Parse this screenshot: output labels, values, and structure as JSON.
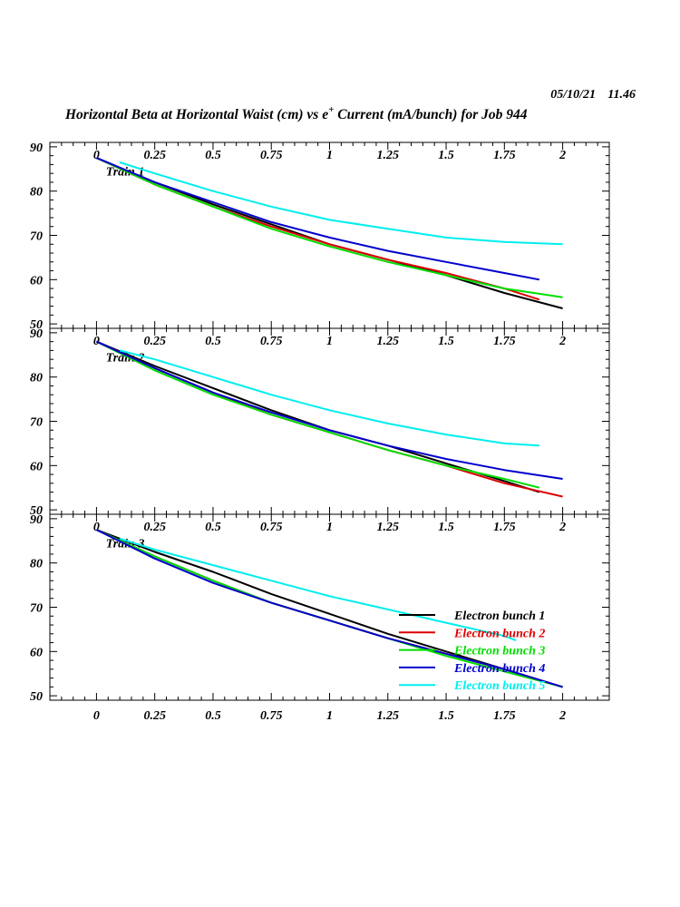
{
  "header": {
    "date": "05/10/21",
    "time": "11.46",
    "title_part1": "Horizontal Beta at Horizontal Waist (cm) vs e",
    "title_sup": "+",
    "title_part2": " Current (mA/bunch) for Job 944"
  },
  "colors": {
    "Electron bunch 1": "#000000",
    "Electron bunch 2": "#dd0000",
    "Electron bunch 3": "#00dd00",
    "Electron bunch 4": "#0000cc",
    "Electron bunch 5": "#00eeee"
  },
  "chart_data": {
    "type": "line",
    "xlim": [
      -0.2,
      2.2
    ],
    "ylim": [
      49,
      91
    ],
    "x_ticks": [
      0,
      0.25,
      0.5,
      0.75,
      1,
      1.25,
      1.5,
      1.75,
      2
    ],
    "x_tick_labels": [
      "0",
      "0.25",
      "0.5",
      "0.75",
      "1",
      "1.25",
      "1.5",
      "1.75",
      "2"
    ],
    "y_ticks": [
      50,
      60,
      70,
      80,
      90
    ],
    "y_tick_labels": [
      "50",
      "60",
      "70",
      "80",
      "90"
    ],
    "legend": {
      "location": "bottom-right of panel 3",
      "entries": [
        "Electron bunch 1",
        "Electron bunch 2",
        "Electron bunch 3",
        "Electron bunch 4",
        "Electron bunch 5"
      ]
    },
    "panels": [
      {
        "label": "Train 1",
        "series": [
          {
            "name": "Electron bunch 1",
            "x": [
              0,
              0.25,
              0.5,
              0.75,
              1,
              1.25,
              1.5,
              1.75,
              2
            ],
            "y": [
              87.5,
              82,
              77,
              72.5,
              68,
              64.5,
              61,
              57,
              53.5
            ]
          },
          {
            "name": "Electron bunch 2",
            "x": [
              0,
              0.25,
              0.5,
              0.75,
              1,
              1.25,
              1.5,
              1.75,
              1.9
            ],
            "y": [
              87.5,
              81.5,
              76.5,
              72,
              68,
              64.5,
              61.5,
              58,
              55.5
            ]
          },
          {
            "name": "Electron bunch 3",
            "x": [
              0,
              0.25,
              0.5,
              0.75,
              1,
              1.25,
              1.5,
              1.75,
              2
            ],
            "y": [
              87.5,
              81.5,
              76.5,
              71.5,
              67.5,
              64,
              61,
              58,
              56
            ]
          },
          {
            "name": "Electron bunch 4",
            "x": [
              0,
              0.25,
              0.5,
              0.75,
              1,
              1.25,
              1.5,
              1.75,
              1.9
            ],
            "y": [
              87.5,
              82,
              77.5,
              73,
              69.5,
              66.5,
              64,
              61.5,
              60
            ]
          },
          {
            "name": "Electron bunch 5",
            "x": [
              0.1,
              0.25,
              0.5,
              0.75,
              1,
              1.25,
              1.5,
              1.75,
              2
            ],
            "y": [
              86.5,
              84,
              80,
              76.5,
              73.5,
              71.5,
              69.5,
              68.5,
              68
            ]
          }
        ]
      },
      {
        "label": "Train 2",
        "series": [
          {
            "name": "Electron bunch 1",
            "x": [
              0,
              0.25,
              0.5,
              0.75,
              1,
              1.25,
              1.5,
              1.75,
              1.9
            ],
            "y": [
              88,
              82.5,
              77.5,
              72.5,
              68,
              64.5,
              60.5,
              56.5,
              54
            ]
          },
          {
            "name": "Electron bunch 2",
            "x": [
              0,
              0.25,
              0.5,
              0.75,
              1,
              1.25,
              1.5,
              1.75,
              2
            ],
            "y": [
              88,
              82,
              76.5,
              71.5,
              67.5,
              63.5,
              60,
              56,
              53
            ]
          },
          {
            "name": "Electron bunch 3",
            "x": [
              0,
              0.25,
              0.5,
              0.75,
              1,
              1.25,
              1.5,
              1.75,
              1.9
            ],
            "y": [
              88,
              81.5,
              76,
              71.5,
              67.5,
              63.5,
              60,
              57,
              55
            ]
          },
          {
            "name": "Electron bunch 4",
            "x": [
              0,
              0.25,
              0.5,
              0.75,
              1,
              1.25,
              1.5,
              1.75,
              2
            ],
            "y": [
              88,
              82,
              76.5,
              72,
              68,
              64.5,
              61.5,
              59,
              57
            ]
          },
          {
            "name": "Electron bunch 5",
            "x": [
              0.1,
              0.25,
              0.5,
              0.75,
              1,
              1.25,
              1.5,
              1.75,
              1.9
            ],
            "y": [
              86,
              84,
              80,
              76,
              72.5,
              69.5,
              67,
              65,
              64.5
            ]
          }
        ]
      },
      {
        "label": "Train 3",
        "series": [
          {
            "name": "Electron bunch 1",
            "x": [
              0,
              0.25,
              0.5,
              0.75,
              1,
              1.25,
              1.5,
              1.75,
              2
            ],
            "y": [
              87.5,
              82.5,
              78,
              73,
              68.5,
              64,
              60,
              56,
              52
            ]
          },
          {
            "name": "Electron bunch 2",
            "x": [
              0,
              0.25,
              0.5,
              0.75,
              1,
              1.25,
              1.5,
              1.75,
              2
            ],
            "y": [
              87.5,
              81.5,
              76,
              71,
              67,
              63,
              59.5,
              56,
              52
            ]
          },
          {
            "name": "Electron bunch 3",
            "x": [
              0,
              0.25,
              0.5,
              0.75,
              1,
              1.25,
              1.5,
              1.75,
              2
            ],
            "y": [
              87.5,
              81.5,
              76,
              71,
              67,
              63,
              59,
              55.5,
              52
            ]
          },
          {
            "name": "Electron bunch 4",
            "x": [
              0,
              0.25,
              0.5,
              0.75,
              1,
              1.25,
              1.5,
              1.75,
              2
            ],
            "y": [
              87.5,
              81,
              75.5,
              71,
              67,
              63,
              59.5,
              56,
              52
            ]
          },
          {
            "name": "Electron bunch 5",
            "x": [
              0.1,
              0.25,
              0.5,
              0.75,
              1,
              1.25,
              1.5,
              1.75,
              1.8
            ],
            "y": [
              85.5,
              83,
              79.5,
              76,
              72.5,
              69.5,
              66.5,
              63.5,
              62.5
            ]
          }
        ]
      }
    ]
  }
}
